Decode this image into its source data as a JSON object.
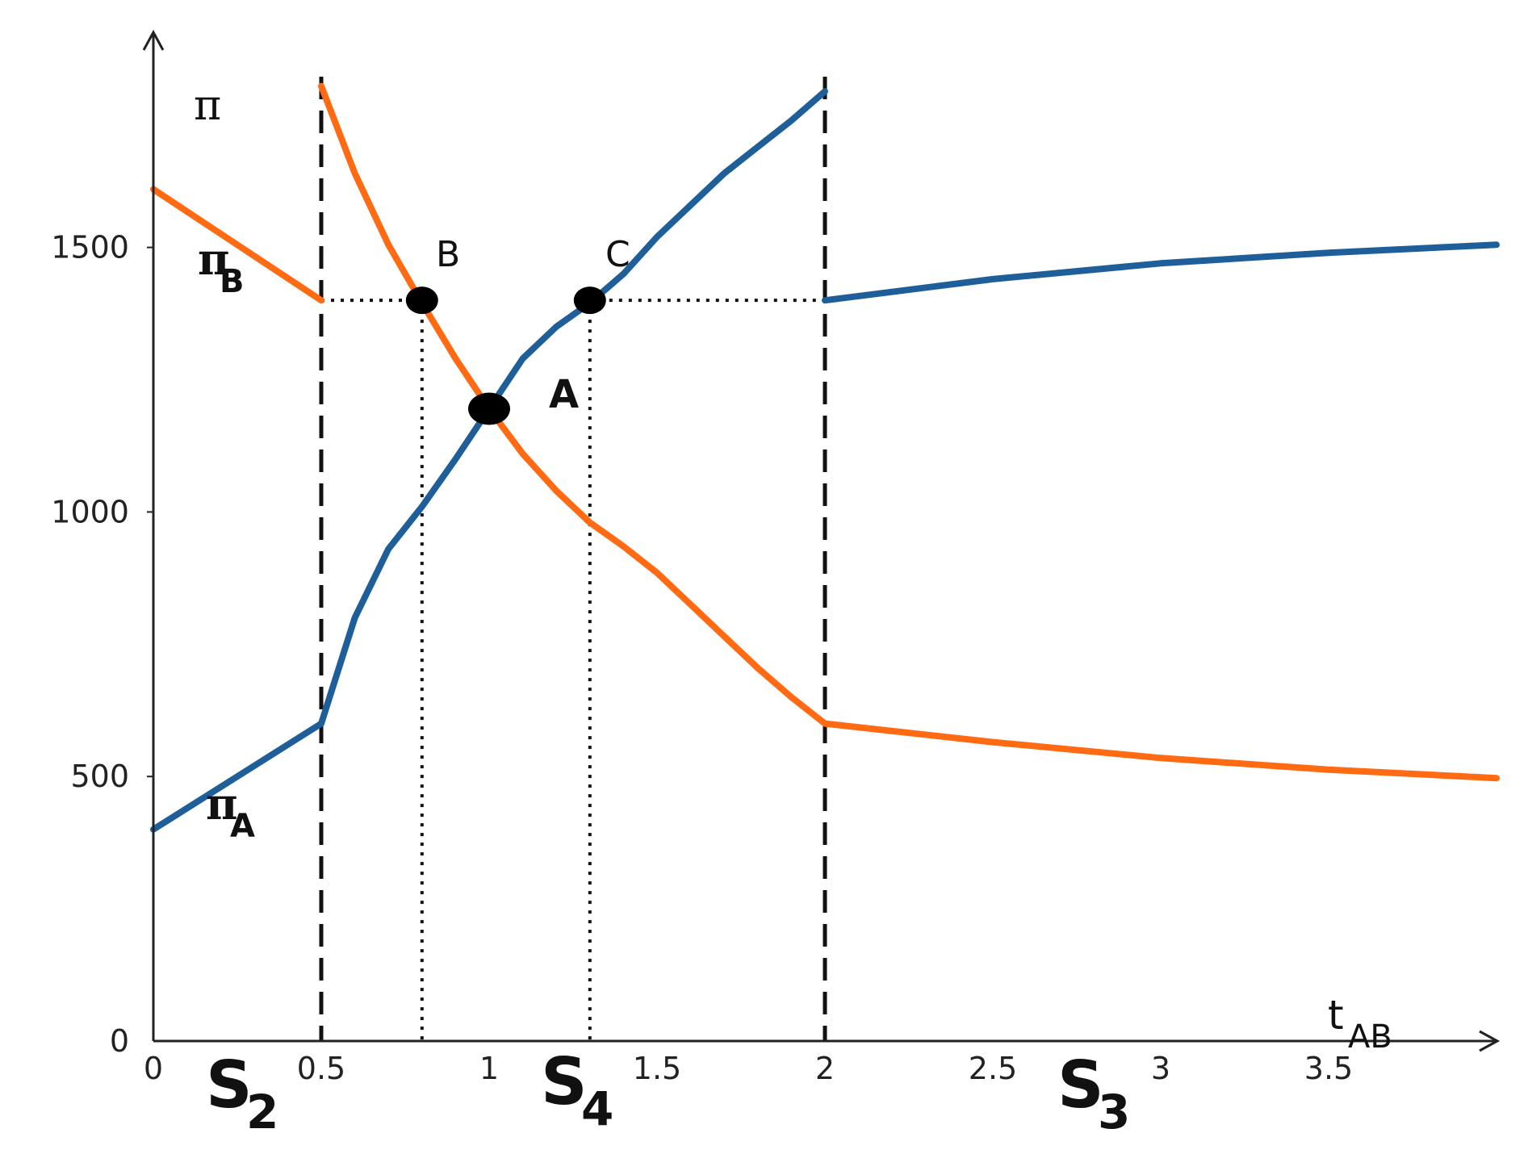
{
  "chart_data": {
    "type": "line",
    "xlabel": "t",
    "xlabel_sub": "AB",
    "ylabel": "π",
    "xlim": [
      0,
      4
    ],
    "ylim": [
      0,
      1800
    ],
    "xticks": [
      0,
      0.5,
      1,
      1.5,
      2,
      2.5,
      3,
      3.5
    ],
    "xtick_labels": [
      "0",
      "0.5",
      "1",
      "1.5",
      "2",
      "2.5",
      "3",
      "3.5"
    ],
    "yticks": [
      0,
      500,
      1000,
      1500
    ],
    "ytick_labels": [
      "0",
      "500",
      "1000",
      "1500"
    ],
    "grid": false,
    "series": [
      {
        "name": "π",
        "name_sub": "B",
        "color": "#ff6a13",
        "segments": [
          {
            "x": [
              0,
              0.5
            ],
            "y": [
              1610,
              1400
            ]
          },
          {
            "x": [
              0.5,
              0.6,
              0.7,
              0.8,
              0.9,
              1.0,
              1.1,
              1.2,
              1.3,
              1.4,
              1.5,
              1.6,
              1.7,
              1.8,
              1.9,
              2.0
            ],
            "y": [
              1805,
              1640,
              1505,
              1395,
              1290,
              1195,
              1110,
              1040,
              980,
              935,
              885,
              825,
              765,
              705,
              650,
              600
            ]
          },
          {
            "x": [
              2.0,
              2.5,
              3.0,
              3.5,
              4.0
            ],
            "y": [
              600,
              565,
              535,
              513,
              497
            ]
          }
        ]
      },
      {
        "name": "π",
        "name_sub": "A",
        "color": "#1f5f99",
        "segments": [
          {
            "x": [
              0,
              0.5
            ],
            "y": [
              400,
              600
            ]
          },
          {
            "x": [
              0.5,
              0.6,
              0.7,
              0.8,
              0.9,
              1.0,
              1.1,
              1.2,
              1.3,
              1.4,
              1.5,
              1.6,
              1.7,
              1.8,
              1.9,
              2.0
            ],
            "y": [
              600,
              800,
              930,
              1010,
              1100,
              1195,
              1290,
              1350,
              1395,
              1450,
              1520,
              1580,
              1640,
              1690,
              1740,
              1795
            ]
          },
          {
            "x": [
              2.0,
              2.5,
              3.0,
              3.5,
              4.0
            ],
            "y": [
              1400,
              1440,
              1470,
              1490,
              1505
            ]
          }
        ]
      }
    ],
    "dashed_vlines": [
      0.5,
      2.0
    ],
    "dotted_guides": [
      {
        "x": [
          0.5,
          0.8
        ],
        "y": [
          1400,
          1400
        ]
      },
      {
        "x": [
          0.8,
          0.8
        ],
        "y": [
          1400,
          0
        ]
      },
      {
        "x": [
          1.3,
          2.0
        ],
        "y": [
          1400,
          1400
        ]
      },
      {
        "x": [
          1.3,
          1.3
        ],
        "y": [
          1400,
          0
        ]
      }
    ],
    "points": [
      {
        "label": "B",
        "x": 0.8,
        "y": 1400
      },
      {
        "label": "C",
        "x": 1.3,
        "y": 1400
      },
      {
        "label": "A",
        "x": 1.0,
        "y": 1195
      }
    ],
    "regions": [
      {
        "label": "S",
        "sub": "2",
        "x": 0.22
      },
      {
        "label": "S",
        "sub": "4",
        "x": 1.22
      },
      {
        "label": "S",
        "sub": "3",
        "x": 2.8
      }
    ]
  }
}
